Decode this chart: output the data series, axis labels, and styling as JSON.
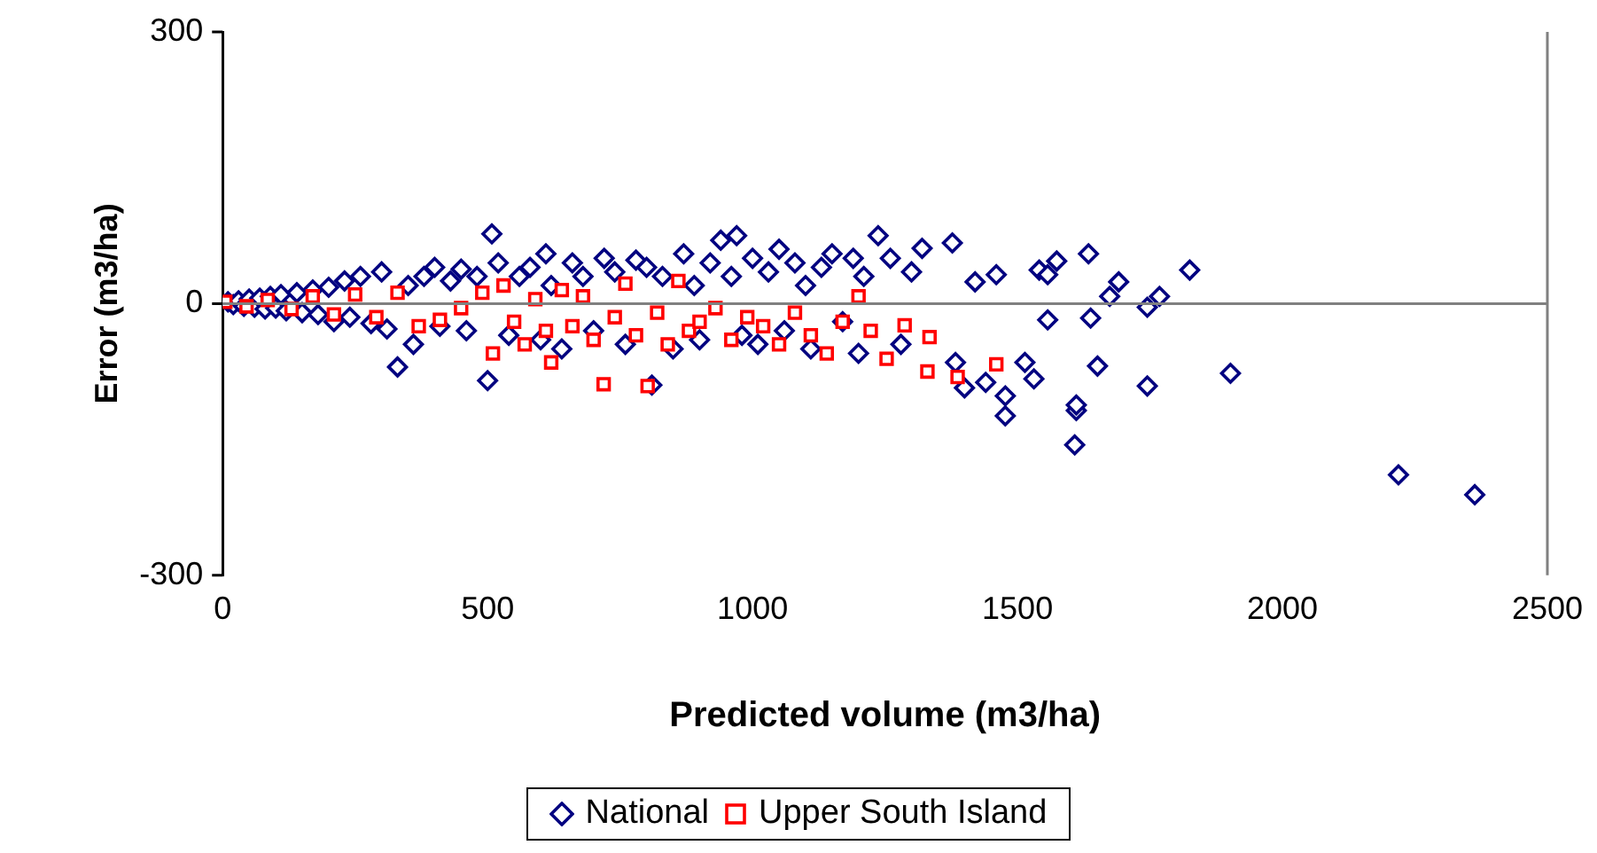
{
  "chart_data": {
    "type": "scatter",
    "xlabel": "Predicted volume (m3/ha)",
    "ylabel": "Error (m3/ha)",
    "xlim": [
      0,
      2500
    ],
    "xticks": [
      0,
      500,
      1000,
      1500,
      2000,
      2500
    ],
    "ylim": [
      -300,
      300
    ],
    "yticks": [
      -300,
      0,
      300
    ],
    "legend": "bottom",
    "series": [
      {
        "name": "National",
        "color": "#000080",
        "marker": "diamond",
        "x": [
          10,
          20,
          30,
          40,
          50,
          60,
          70,
          80,
          90,
          100,
          110,
          120,
          140,
          150,
          170,
          180,
          200,
          210,
          230,
          240,
          260,
          280,
          300,
          310,
          330,
          350,
          360,
          380,
          400,
          410,
          430,
          450,
          460,
          480,
          500,
          508,
          520,
          540,
          560,
          580,
          600,
          610,
          620,
          640,
          660,
          680,
          700,
          720,
          740,
          760,
          780,
          800,
          810,
          830,
          850,
          870,
          890,
          900,
          920,
          940,
          960,
          970,
          980,
          1000,
          1010,
          1030,
          1050,
          1060,
          1080,
          1100,
          1110,
          1130,
          1150,
          1170,
          1190,
          1200,
          1210,
          1237,
          1260,
          1280,
          1300,
          1320,
          1377,
          1383,
          1400,
          1420,
          1440,
          1460,
          1477,
          1477,
          1514,
          1531,
          1541,
          1557,
          1557,
          1574,
          1608,
          1611,
          1611,
          1634,
          1638,
          1651,
          1674,
          1691,
          1745,
          1745,
          1768,
          1825,
          1902,
          2219,
          2363
        ],
        "values": [
          2,
          -1,
          3,
          -3,
          5,
          -4,
          6,
          -6,
          8,
          -5,
          10,
          -8,
          12,
          -10,
          15,
          -12,
          18,
          -20,
          25,
          -15,
          30,
          -22,
          35,
          -28,
          -70,
          20,
          -45,
          30,
          40,
          -25,
          25,
          38,
          -30,
          30,
          -85,
          77,
          45,
          -35,
          30,
          40,
          -40,
          55,
          20,
          -50,
          45,
          30,
          -30,
          50,
          35,
          -45,
          48,
          40,
          -90,
          30,
          -50,
          55,
          20,
          -40,
          45,
          70,
          30,
          75,
          -35,
          50,
          -45,
          35,
          60,
          -30,
          45,
          20,
          -50,
          40,
          55,
          -20,
          50,
          -55,
          30,
          75,
          50,
          -45,
          35,
          61,
          67,
          -65,
          -93,
          24,
          -87,
          32,
          -124,
          -102,
          -65,
          -83,
          37,
          32,
          -18,
          47,
          -156,
          -118,
          -112,
          55,
          -16,
          -69,
          8,
          24,
          -4,
          -91,
          8,
          37,
          -77,
          -189,
          -211
        ]
      },
      {
        "name": "Upper South Island",
        "color": "#ff0000",
        "marker": "square",
        "x": [
          5,
          45,
          85,
          130,
          170,
          210,
          250,
          290,
          330,
          370,
          410,
          450,
          490,
          510,
          530,
          550,
          570,
          590,
          610,
          620,
          640,
          660,
          680,
          700,
          719,
          740,
          760,
          780,
          802,
          820,
          840,
          860,
          880,
          900,
          930,
          960,
          990,
          1020,
          1050,
          1080,
          1110,
          1140,
          1170,
          1200,
          1223,
          1253,
          1287,
          1330,
          1334,
          1387,
          1460
        ],
        "values": [
          2,
          -3,
          4,
          -6,
          8,
          -12,
          10,
          -15,
          12,
          -25,
          -18,
          -5,
          12,
          -55,
          20,
          -20,
          -45,
          5,
          -30,
          -65,
          15,
          -25,
          8,
          -40,
          -89,
          -15,
          22,
          -35,
          -91,
          -10,
          -45,
          25,
          -30,
          -20,
          -5,
          -40,
          -15,
          -25,
          -45,
          -10,
          -35,
          -55,
          -20,
          8,
          -30,
          -61,
          -24,
          -75,
          -37,
          -81,
          -67
        ]
      }
    ]
  }
}
